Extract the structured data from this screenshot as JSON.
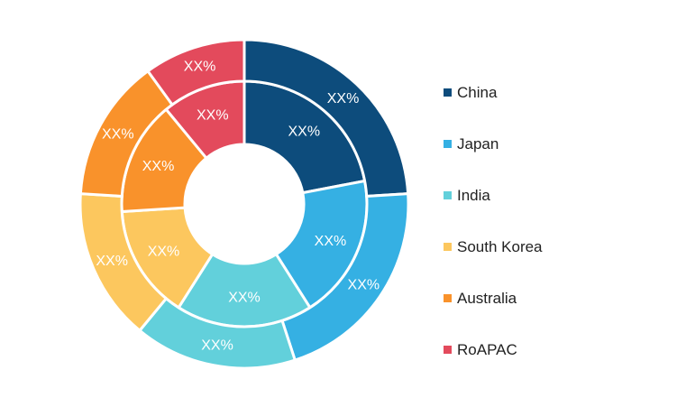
{
  "chart_data": {
    "type": "pie",
    "categories": [
      "China",
      "Japan",
      "India",
      "South Korea",
      "Australia",
      "RoAPAC"
    ],
    "colors": [
      "#0d4c7c",
      "#35b0e3",
      "#62d0db",
      "#fcc75e",
      "#f9922b",
      "#e34a5c"
    ],
    "series": [
      {
        "values": [
          22,
          19,
          18,
          15,
          15,
          11
        ],
        "labels": [
          "XX%",
          "XX%",
          "XX%",
          "XX%",
          "XX%",
          "XX%"
        ]
      },
      {
        "values": [
          24,
          21,
          16,
          15,
          14,
          10
        ],
        "labels": [
          "XX%",
          "XX%",
          "XX%",
          "XX%",
          "XX%",
          "XX%"
        ]
      }
    ],
    "legend_position": "right"
  }
}
